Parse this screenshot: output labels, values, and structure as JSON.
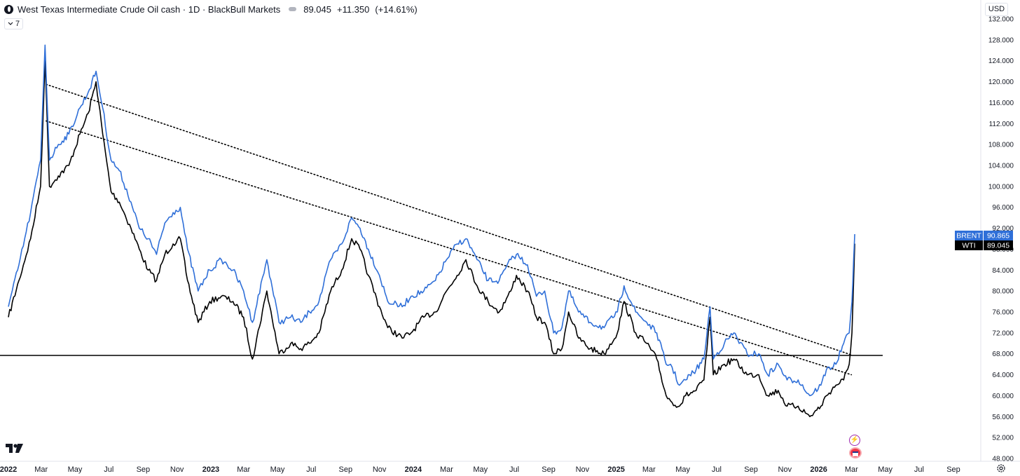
{
  "header": {
    "title": "West Texas Intermediate Crude Oil cash · 1D · BlackBull Markets",
    "price": "89.045",
    "change": "+11.350",
    "change_pct": "(+14.61%)"
  },
  "indicator_toggle": {
    "label": "7"
  },
  "currency": {
    "label": "USD"
  },
  "icons": [
    "symbol-logo-icon",
    "chevron-down-icon",
    "tradingview-logo-icon",
    "lightning-icon",
    "us-flag-icon",
    "settings-icon"
  ],
  "colors": {
    "brent": "#2f6fd8",
    "wti": "#000000",
    "trendline": "#000000",
    "support": "#000000",
    "background": "#ffffff"
  },
  "chart_data": {
    "type": "line",
    "ylim": [
      48,
      132
    ],
    "y_ticks": [
      "132.000",
      "128.000",
      "124.000",
      "120.000",
      "116.000",
      "112.000",
      "108.000",
      "104.000",
      "100.000",
      "96.000",
      "92.000",
      "88.000",
      "84.000",
      "80.000",
      "76.000",
      "72.000",
      "68.000",
      "64.000",
      "60.000",
      "56.000",
      "52.000",
      "48.000"
    ],
    "x_ticks": [
      {
        "label": "2022",
        "bold": true,
        "x": "2022-01-01"
      },
      {
        "label": "Mar",
        "bold": false,
        "x": "2022-03-01"
      },
      {
        "label": "May",
        "bold": false,
        "x": "2022-05-01"
      },
      {
        "label": "Jul",
        "bold": false,
        "x": "2022-07-01"
      },
      {
        "label": "Sep",
        "bold": false,
        "x": "2022-09-01"
      },
      {
        "label": "Nov",
        "bold": false,
        "x": "2022-11-01"
      },
      {
        "label": "2023",
        "bold": true,
        "x": "2023-01-01"
      },
      {
        "label": "Mar",
        "bold": false,
        "x": "2023-03-01"
      },
      {
        "label": "May",
        "bold": false,
        "x": "2023-05-01"
      },
      {
        "label": "Jul",
        "bold": false,
        "x": "2023-07-01"
      },
      {
        "label": "Sep",
        "bold": false,
        "x": "2023-09-01"
      },
      {
        "label": "Nov",
        "bold": false,
        "x": "2023-11-01"
      },
      {
        "label": "2024",
        "bold": true,
        "x": "2024-01-01"
      },
      {
        "label": "Mar",
        "bold": false,
        "x": "2024-03-01"
      },
      {
        "label": "May",
        "bold": false,
        "x": "2024-05-01"
      },
      {
        "label": "Jul",
        "bold": false,
        "x": "2024-07-01"
      },
      {
        "label": "Sep",
        "bold": false,
        "x": "2024-09-01"
      },
      {
        "label": "Nov",
        "bold": false,
        "x": "2024-11-01"
      },
      {
        "label": "2025",
        "bold": true,
        "x": "2025-01-01"
      },
      {
        "label": "Mar",
        "bold": false,
        "x": "2025-03-01"
      },
      {
        "label": "May",
        "bold": false,
        "x": "2025-05-01"
      },
      {
        "label": "Jul",
        "bold": false,
        "x": "2025-07-01"
      },
      {
        "label": "Sep",
        "bold": false,
        "x": "2025-09-01"
      },
      {
        "label": "Nov",
        "bold": false,
        "x": "2025-11-01"
      },
      {
        "label": "2026",
        "bold": true,
        "x": "2026-01-01"
      },
      {
        "label": "Mar",
        "bold": false,
        "x": "2026-03-01"
      },
      {
        "label": "May",
        "bold": false,
        "x": "2026-05-01"
      },
      {
        "label": "Jul",
        "bold": false,
        "x": "2026-07-01"
      },
      {
        "label": "Sep",
        "bold": false,
        "x": "2026-09-01"
      }
    ],
    "series": [
      {
        "name": "BRENT",
        "last_value": "90.865",
        "x": [
          "2022-01-01",
          "2022-01-20",
          "2022-02-10",
          "2022-02-28",
          "2022-03-08",
          "2022-03-16",
          "2022-04-01",
          "2022-04-20",
          "2022-05-10",
          "2022-05-25",
          "2022-06-08",
          "2022-06-20",
          "2022-07-05",
          "2022-07-20",
          "2022-08-10",
          "2022-08-25",
          "2022-09-10",
          "2022-09-25",
          "2022-10-10",
          "2022-10-25",
          "2022-11-07",
          "2022-11-20",
          "2022-12-09",
          "2022-12-30",
          "2023-01-20",
          "2023-02-10",
          "2023-03-01",
          "2023-03-17",
          "2023-04-12",
          "2023-05-04",
          "2023-05-25",
          "2023-06-12",
          "2023-06-28",
          "2023-07-15",
          "2023-08-05",
          "2023-08-25",
          "2023-09-12",
          "2023-09-27",
          "2023-10-12",
          "2023-11-01",
          "2023-11-16",
          "2023-12-12",
          "2023-12-28",
          "2024-01-20",
          "2024-02-10",
          "2024-03-01",
          "2024-03-20",
          "2024-04-05",
          "2024-04-25",
          "2024-05-15",
          "2024-06-04",
          "2024-06-25",
          "2024-07-05",
          "2024-07-25",
          "2024-08-10",
          "2024-08-25",
          "2024-09-10",
          "2024-09-25",
          "2024-10-07",
          "2024-10-25",
          "2024-11-15",
          "2024-12-10",
          "2025-01-03",
          "2025-01-15",
          "2025-02-05",
          "2025-02-25",
          "2025-03-15",
          "2025-04-01",
          "2025-04-09",
          "2025-04-25",
          "2025-05-06",
          "2025-05-25",
          "2025-06-08",
          "2025-06-19",
          "2025-06-25",
          "2025-07-15",
          "2025-08-01",
          "2025-08-25",
          "2025-09-15",
          "2025-10-01",
          "2025-10-20",
          "2025-11-05",
          "2025-11-25",
          "2025-12-16",
          "2026-01-05",
          "2026-01-15",
          "2026-02-01",
          "2026-02-15",
          "2026-02-25",
          "2026-03-02",
          "2026-03-05",
          "2026-03-07"
        ],
        "values": [
          77,
          85,
          95,
          105,
          127,
          105,
          108,
          110,
          115,
          118,
          122,
          115,
          105,
          103,
          97,
          92,
          90,
          87,
          93,
          95,
          96,
          88,
          80,
          84,
          86,
          84,
          80,
          74,
          86,
          74,
          75,
          74,
          76,
          78,
          86,
          89,
          94,
          92,
          88,
          83,
          78,
          77,
          79,
          80,
          82,
          86,
          89,
          90,
          86,
          82,
          82,
          86,
          87,
          85,
          79,
          80,
          72,
          73,
          80,
          76,
          74,
          73,
          76,
          81,
          76,
          74,
          72,
          66,
          66,
          62,
          63,
          65,
          67,
          77,
          67,
          70,
          72,
          68,
          68,
          64,
          66,
          63,
          63,
          60,
          62,
          65,
          66,
          70,
          72,
          78,
          86,
          90.865
        ]
      },
      {
        "name": "WTI",
        "last_value": "89.045",
        "x": [
          "2022-01-01",
          "2022-01-20",
          "2022-02-10",
          "2022-02-28",
          "2022-03-08",
          "2022-03-16",
          "2022-04-01",
          "2022-04-20",
          "2022-05-10",
          "2022-05-25",
          "2022-06-08",
          "2022-06-20",
          "2022-07-05",
          "2022-07-20",
          "2022-08-10",
          "2022-08-25",
          "2022-09-10",
          "2022-09-25",
          "2022-10-10",
          "2022-10-25",
          "2022-11-07",
          "2022-11-20",
          "2022-12-09",
          "2022-12-30",
          "2023-01-20",
          "2023-02-10",
          "2023-03-01",
          "2023-03-17",
          "2023-04-12",
          "2023-05-04",
          "2023-05-25",
          "2023-06-12",
          "2023-06-28",
          "2023-07-15",
          "2023-08-05",
          "2023-08-25",
          "2023-09-12",
          "2023-09-27",
          "2023-10-12",
          "2023-11-01",
          "2023-11-16",
          "2023-12-12",
          "2023-12-28",
          "2024-01-20",
          "2024-02-10",
          "2024-03-01",
          "2024-03-20",
          "2024-04-05",
          "2024-04-25",
          "2024-05-15",
          "2024-06-04",
          "2024-06-25",
          "2024-07-05",
          "2024-07-25",
          "2024-08-10",
          "2024-08-25",
          "2024-09-10",
          "2024-09-25",
          "2024-10-07",
          "2024-10-25",
          "2024-11-15",
          "2024-12-10",
          "2025-01-03",
          "2025-01-15",
          "2025-02-05",
          "2025-02-25",
          "2025-03-15",
          "2025-04-01",
          "2025-04-09",
          "2025-04-25",
          "2025-05-06",
          "2025-05-25",
          "2025-06-08",
          "2025-06-19",
          "2025-06-25",
          "2025-07-15",
          "2025-08-01",
          "2025-08-25",
          "2025-09-15",
          "2025-10-01",
          "2025-10-20",
          "2025-11-05",
          "2025-11-25",
          "2025-12-16",
          "2026-01-05",
          "2026-01-15",
          "2026-02-01",
          "2026-02-15",
          "2026-02-25",
          "2026-03-02",
          "2026-03-05",
          "2026-03-07"
        ],
        "values": [
          75,
          82,
          90,
          100,
          124,
          100,
          102,
          104,
          110,
          114,
          120,
          110,
          99,
          97,
          92,
          88,
          84,
          82,
          87,
          89,
          90,
          82,
          74,
          78,
          79,
          78,
          75,
          67,
          80,
          68,
          70,
          69,
          70,
          72,
          80,
          84,
          90,
          88,
          83,
          77,
          73,
          71,
          72,
          75,
          76,
          80,
          83,
          86,
          81,
          78,
          76,
          80,
          83,
          80,
          75,
          74,
          68,
          69,
          76,
          71,
          69,
          68,
          72,
          78,
          72,
          70,
          67,
          60,
          59,
          58,
          60,
          61,
          63,
          75,
          64,
          66,
          67,
          64,
          64,
          60,
          61,
          58,
          58,
          56,
          58,
          60,
          62,
          63,
          66,
          72,
          82,
          89.045
        ]
      }
    ],
    "annotations": {
      "support_level": 67.7,
      "trendline_upper": {
        "start": [
          "2022-03-10",
          119.5
        ],
        "end": [
          "2026-03-01",
          67.8
        ]
      },
      "trendline_lower": {
        "start": [
          "2022-03-10",
          112.5
        ],
        "end": [
          "2026-03-01",
          64.0
        ]
      }
    }
  }
}
